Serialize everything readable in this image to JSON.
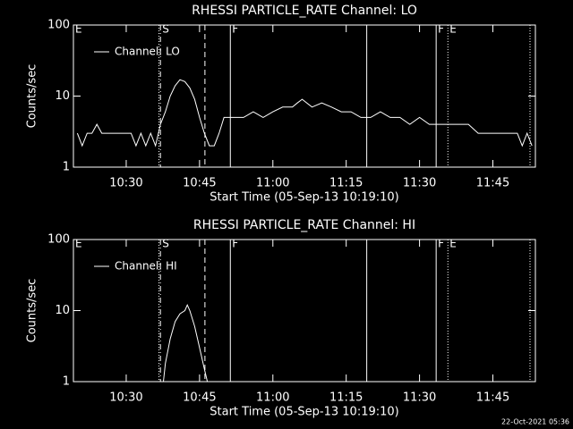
{
  "footer": "22-Oct-2021 05:36",
  "chart_data": [
    {
      "type": "line",
      "title": "RHESSI PARTICLE_RATE Channel: LO",
      "xlabel": "Start Time (05-Sep-13 10:19:10)",
      "ylabel": "Counts/sec",
      "log_y": true,
      "ylim": [
        1,
        100
      ],
      "yticks": [
        1,
        10,
        100
      ],
      "xlim": [
        619.2,
        713.7
      ],
      "xticks": [
        {
          "value": 630,
          "label": "10:30"
        },
        {
          "value": 645,
          "label": "10:45"
        },
        {
          "value": 660,
          "label": "11:00"
        },
        {
          "value": 675,
          "label": "11:15"
        },
        {
          "value": 690,
          "label": "11:30"
        },
        {
          "value": 705,
          "label": "11:45"
        }
      ],
      "legend": "upper left",
      "markers": [
        {
          "x": 619.2,
          "label": "E",
          "style": "solid"
        },
        {
          "x": 636.7,
          "style": "dotted"
        },
        {
          "x": 637.0,
          "label": "S",
          "style": "dashdot"
        },
        {
          "x": 646.1,
          "style": "dashed"
        },
        {
          "x": 651.3,
          "label": "F",
          "style": "solid"
        },
        {
          "x": 679.2,
          "style": "solid"
        },
        {
          "x": 693.4,
          "label": "F",
          "style": "solid"
        },
        {
          "x": 695.8,
          "label": "E",
          "style": "dotted"
        },
        {
          "x": 712.6,
          "style": "dotted"
        }
      ],
      "x": [
        620,
        621,
        622,
        623,
        624,
        625,
        626,
        627,
        628,
        629,
        630,
        631,
        632,
        633,
        634,
        635,
        636,
        637,
        638,
        639,
        640,
        641,
        642,
        643,
        644,
        645,
        646,
        647,
        648,
        649,
        650,
        652,
        654,
        656,
        658,
        660,
        662,
        664,
        665,
        666,
        668,
        670,
        672,
        674,
        676,
        678,
        680,
        682,
        684,
        686,
        688,
        690,
        692,
        694,
        696,
        698,
        700,
        702,
        704,
        706,
        708,
        710,
        711,
        712,
        713
      ],
      "series": [
        {
          "name": "Channel: LO",
          "color": "#ffffff",
          "values": [
            3,
            2,
            3,
            3,
            4,
            3,
            3,
            3,
            3,
            3,
            3,
            3,
            2,
            3,
            2,
            3,
            2,
            4,
            6,
            10,
            14,
            17,
            16,
            13,
            9,
            5,
            3,
            2,
            2,
            3,
            5,
            5,
            5,
            6,
            5,
            6,
            7,
            7,
            8,
            9,
            7,
            8,
            7,
            6,
            6,
            5,
            5,
            6,
            5,
            5,
            4,
            5,
            4,
            4,
            4,
            4,
            4,
            3,
            3,
            3,
            3,
            3,
            2,
            3,
            2
          ]
        }
      ]
    },
    {
      "type": "line",
      "title": "RHESSI PARTICLE_RATE Channel: HI",
      "xlabel": "Start Time (05-Sep-13 10:19:10)",
      "ylabel": "Counts/sec",
      "log_y": true,
      "ylim": [
        1,
        100
      ],
      "yticks": [
        1,
        10,
        100
      ],
      "xlim": [
        619.2,
        713.7
      ],
      "xticks": [
        {
          "value": 630,
          "label": "10:30"
        },
        {
          "value": 645,
          "label": "10:45"
        },
        {
          "value": 660,
          "label": "11:00"
        },
        {
          "value": 675,
          "label": "11:15"
        },
        {
          "value": 690,
          "label": "11:30"
        },
        {
          "value": 705,
          "label": "11:45"
        }
      ],
      "legend": "upper left",
      "markers": [
        {
          "x": 619.2,
          "label": "E",
          "style": "solid"
        },
        {
          "x": 636.7,
          "style": "dotted"
        },
        {
          "x": 637.0,
          "label": "S",
          "style": "dashdot"
        },
        {
          "x": 646.1,
          "style": "dashed"
        },
        {
          "x": 651.3,
          "label": "F",
          "style": "solid"
        },
        {
          "x": 679.2,
          "style": "solid"
        },
        {
          "x": 693.4,
          "label": "F",
          "style": "solid"
        },
        {
          "x": 695.8,
          "label": "E",
          "style": "dotted"
        },
        {
          "x": 712.6,
          "style": "dotted"
        }
      ],
      "x": [
        637.6,
        638,
        639,
        640,
        641,
        642,
        642.5,
        643,
        644,
        645,
        646,
        646.6
      ],
      "series": [
        {
          "name": "Channel: HI",
          "color": "#ffffff",
          "values": [
            1,
            1.8,
            4,
            7,
            9,
            10,
            12,
            10,
            6,
            3,
            1.5,
            1
          ]
        }
      ]
    }
  ]
}
